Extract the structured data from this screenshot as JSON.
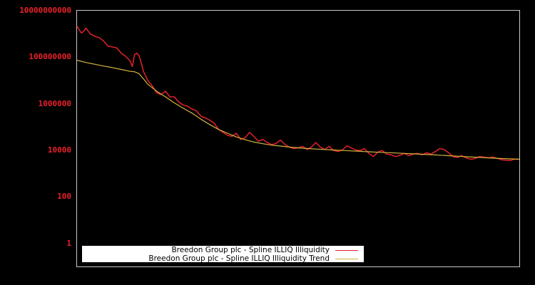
{
  "chart_data": {
    "type": "line",
    "title": "",
    "xlabel": "",
    "ylabel": "",
    "yscale": "log",
    "ylim": [
      0.3,
      10000000000
    ],
    "y_ticks": [
      {
        "label": "10000000000",
        "value": 10000000000
      },
      {
        "label": "100000000",
        "value": 100000000
      },
      {
        "label": "1000000",
        "value": 1000000
      },
      {
        "label": "10000",
        "value": 10000
      },
      {
        "label": "100",
        "value": 100
      },
      {
        "label": "1",
        "value": 1
      }
    ],
    "x_ticks": [],
    "grid": false,
    "legend_position": "bottom-left inside",
    "x_note": "x is normalized time index 0-100 across plot width (no tick labels shown)",
    "series": [
      {
        "name": "Breedon Group plc - Spline ILLIQ Illiquidity",
        "color": "#e8212a",
        "points": [
          [
            0,
            2200000000
          ],
          [
            0.5,
            1500000000
          ],
          [
            1,
            1100000000
          ],
          [
            1.5,
            1300000000
          ],
          [
            2,
            1800000000
          ],
          [
            3,
            1000000000
          ],
          [
            4,
            800000000
          ],
          [
            5,
            700000000
          ],
          [
            6,
            500000000
          ],
          [
            7,
            300000000
          ],
          [
            8,
            280000000
          ],
          [
            9,
            250000000
          ],
          [
            10,
            150000000
          ],
          [
            11,
            110000000
          ],
          [
            12,
            70000000
          ],
          [
            12.5,
            40000000
          ],
          [
            13,
            130000000
          ],
          [
            13.5,
            150000000
          ],
          [
            14,
            120000000
          ],
          [
            14.5,
            60000000
          ],
          [
            15,
            25000000
          ],
          [
            16,
            10000000
          ],
          [
            17,
            6000000
          ],
          [
            18,
            3000000
          ],
          [
            19,
            2500000
          ],
          [
            20,
            3500000
          ],
          [
            21,
            2000000
          ],
          [
            22,
            2000000
          ],
          [
            23,
            1200000
          ],
          [
            24,
            900000
          ],
          [
            25,
            800000
          ],
          [
            26,
            600000
          ],
          [
            27,
            500000
          ],
          [
            28,
            300000
          ],
          [
            29,
            250000
          ],
          [
            30,
            200000
          ],
          [
            31,
            150000
          ],
          [
            32,
            80000
          ],
          [
            33,
            60000
          ],
          [
            34,
            45000
          ],
          [
            35,
            40000
          ],
          [
            36,
            55000
          ],
          [
            37,
            30000
          ],
          [
            38,
            35000
          ],
          [
            39,
            60000
          ],
          [
            40,
            40000
          ],
          [
            41,
            25000
          ],
          [
            42,
            30000
          ],
          [
            43,
            22000
          ],
          [
            44,
            18000
          ],
          [
            45,
            20000
          ],
          [
            46,
            28000
          ],
          [
            47,
            18000
          ],
          [
            48,
            14000
          ],
          [
            49,
            12000
          ],
          [
            50,
            13000
          ],
          [
            51,
            15000
          ],
          [
            52,
            11000
          ],
          [
            53,
            14000
          ],
          [
            54,
            22000
          ],
          [
            55,
            14000
          ],
          [
            56,
            11000
          ],
          [
            57,
            15000
          ],
          [
            58,
            10000
          ],
          [
            59,
            9000
          ],
          [
            60,
            10500
          ],
          [
            61,
            16000
          ],
          [
            62,
            13000
          ],
          [
            63,
            10500
          ],
          [
            64,
            10000
          ],
          [
            65,
            12000
          ],
          [
            66,
            7500
          ],
          [
            67,
            5500
          ],
          [
            68,
            8500
          ],
          [
            69,
            10000
          ],
          [
            70,
            7000
          ],
          [
            71,
            6500
          ],
          [
            72,
            5500
          ],
          [
            73,
            6200
          ],
          [
            74,
            7500
          ],
          [
            75,
            6000
          ],
          [
            76,
            7000
          ],
          [
            77,
            7500
          ],
          [
            78,
            6500
          ],
          [
            79,
            8000
          ],
          [
            80,
            7000
          ],
          [
            81,
            9000
          ],
          [
            82,
            12000
          ],
          [
            83,
            11000
          ],
          [
            84,
            8000
          ],
          [
            85,
            5500
          ],
          [
            86,
            5000
          ],
          [
            87,
            6000
          ],
          [
            88,
            4800
          ],
          [
            89,
            4200
          ],
          [
            90,
            4500
          ],
          [
            91,
            5500
          ],
          [
            92,
            5200
          ],
          [
            93,
            4800
          ],
          [
            94,
            5200
          ],
          [
            95,
            4600
          ],
          [
            96,
            4000
          ],
          [
            97,
            3800
          ],
          [
            98,
            3700
          ],
          [
            99,
            4300
          ],
          [
            100,
            4200
          ]
        ]
      },
      {
        "name": "Breedon Group plc - Spline ILLIQ Illiquidity Trend",
        "color": "#d4b43c",
        "points": [
          [
            0,
            75000000
          ],
          [
            2,
            60000000
          ],
          [
            4,
            50000000
          ],
          [
            6,
            42000000
          ],
          [
            8,
            36000000
          ],
          [
            10,
            30000000
          ],
          [
            12,
            25000000
          ],
          [
            13,
            24000000
          ],
          [
            14,
            20000000
          ],
          [
            15,
            12000000
          ],
          [
            16,
            7000000
          ],
          [
            18,
            3500000
          ],
          [
            20,
            2000000
          ],
          [
            22,
            1100000
          ],
          [
            24,
            650000
          ],
          [
            26,
            400000
          ],
          [
            28,
            220000
          ],
          [
            30,
            130000
          ],
          [
            32,
            80000
          ],
          [
            34,
            55000
          ],
          [
            36,
            38000
          ],
          [
            38,
            29000
          ],
          [
            40,
            23000
          ],
          [
            42,
            19500
          ],
          [
            44,
            17000
          ],
          [
            46,
            15500
          ],
          [
            48,
            14000
          ],
          [
            50,
            13000
          ],
          [
            52,
            12200
          ],
          [
            54,
            11500
          ],
          [
            56,
            11000
          ],
          [
            58,
            10500
          ],
          [
            60,
            10000
          ],
          [
            62,
            9600
          ],
          [
            64,
            9200
          ],
          [
            66,
            8800
          ],
          [
            68,
            8400
          ],
          [
            70,
            8100
          ],
          [
            72,
            7800
          ],
          [
            74,
            7500
          ],
          [
            76,
            7200
          ],
          [
            78,
            6900
          ],
          [
            80,
            6600
          ],
          [
            82,
            6300
          ],
          [
            84,
            6000
          ],
          [
            86,
            5700
          ],
          [
            88,
            5400
          ],
          [
            90,
            5150
          ],
          [
            92,
            4900
          ],
          [
            94,
            4700
          ],
          [
            96,
            4500
          ],
          [
            98,
            4350
          ],
          [
            100,
            4200
          ]
        ]
      }
    ]
  },
  "legend": {
    "items": [
      {
        "label": "Breedon Group plc - Spline ILLIQ Illiquidity",
        "color": "#e8212a"
      },
      {
        "label": "Breedon Group plc - Spline ILLIQ Illiquidity Trend",
        "color": "#d4b43c"
      }
    ]
  },
  "colors": {
    "background": "#000000",
    "axis": "#c8c8c8",
    "tick_label": "#e8212a"
  }
}
